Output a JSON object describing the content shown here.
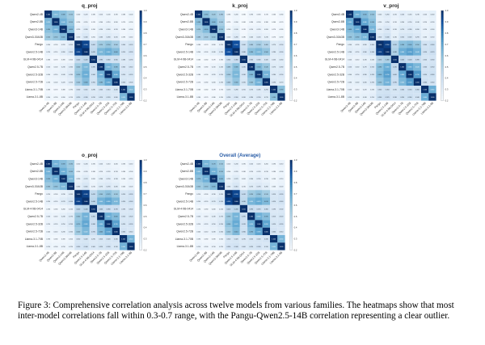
{
  "figure": {
    "caption": "Figure 3: Comprehensive correlation analysis across twelve models from various families. The heatmaps show that most inter-model correlations fall within 0.3-0.7 range, with the Pangu-Qwen2.5-14B correlation representing a clear outlier."
  },
  "chart_data": [
    {
      "type": "heatmap",
      "title": "q_proj",
      "models": [
        "Qwen2-4B",
        "Qwen2-8B",
        "Qwen3-14B",
        "Qwen3-30A3B",
        "Pangu",
        "Qwen2.5-14B",
        "GLM-4-9B-0414",
        "Qwen2.5-7B",
        "Qwen2.5-32B",
        "Qwen2.5-72B",
        "Llama-3.1-70B",
        "Llama-3.1-8B"
      ],
      "values": [
        [
          1.0,
          0.62,
          0.58,
          0.52,
          0.2,
          0.22,
          0.18,
          0.21,
          0.2,
          0.19,
          0.18,
          0.2
        ],
        [
          0.62,
          1.0,
          0.64,
          0.55,
          0.19,
          0.21,
          0.17,
          0.2,
          0.21,
          0.2,
          0.17,
          0.19
        ],
        [
          0.58,
          0.64,
          1.0,
          0.6,
          0.22,
          0.26,
          0.19,
          0.23,
          0.24,
          0.22,
          0.18,
          0.2
        ],
        [
          0.52,
          0.55,
          0.6,
          1.0,
          0.25,
          0.3,
          0.2,
          0.26,
          0.28,
          0.25,
          0.19,
          0.21
        ],
        [
          0.2,
          0.19,
          0.22,
          0.25,
          1.0,
          0.93,
          0.4,
          0.52,
          0.55,
          0.5,
          0.3,
          0.32
        ],
        [
          0.22,
          0.21,
          0.26,
          0.3,
          0.93,
          1.0,
          0.42,
          0.62,
          0.66,
          0.6,
          0.31,
          0.33
        ],
        [
          0.18,
          0.17,
          0.19,
          0.2,
          0.4,
          0.42,
          1.0,
          0.38,
          0.36,
          0.35,
          0.28,
          0.29
        ],
        [
          0.21,
          0.2,
          0.23,
          0.26,
          0.52,
          0.62,
          0.38,
          1.0,
          0.64,
          0.58,
          0.3,
          0.31
        ],
        [
          0.2,
          0.21,
          0.24,
          0.28,
          0.55,
          0.66,
          0.36,
          0.64,
          1.0,
          0.68,
          0.31,
          0.32
        ],
        [
          0.19,
          0.2,
          0.22,
          0.25,
          0.5,
          0.6,
          0.35,
          0.58,
          0.68,
          1.0,
          0.32,
          0.3
        ],
        [
          0.18,
          0.17,
          0.18,
          0.19,
          0.3,
          0.31,
          0.28,
          0.3,
          0.31,
          0.32,
          1.0,
          0.62
        ],
        [
          0.2,
          0.19,
          0.2,
          0.21,
          0.32,
          0.33,
          0.29,
          0.31,
          0.32,
          0.3,
          0.62,
          1.0
        ]
      ],
      "colorbar_ticks": [
        "1.0",
        "0.9",
        "0.8",
        "0.7",
        "0.6",
        "0.5",
        "0.4",
        "0.3",
        "0.2"
      ]
    },
    {
      "type": "heatmap",
      "title": "k_proj",
      "models": [
        "Qwen2-4B",
        "Qwen2-8B",
        "Qwen3-14B",
        "Qwen3-30A3B",
        "Pangu",
        "Qwen2.5-14B",
        "GLM-4-9B-0414",
        "Qwen2.5-7B",
        "Qwen2.5-32B",
        "Qwen2.5-72B",
        "Llama-3.1-70B",
        "Llama-3.1-8B"
      ],
      "values": [
        [
          1.0,
          0.58,
          0.52,
          0.48,
          0.18,
          0.2,
          0.16,
          0.19,
          0.18,
          0.17,
          0.16,
          0.18
        ],
        [
          0.58,
          1.0,
          0.6,
          0.5,
          0.17,
          0.2,
          0.16,
          0.18,
          0.19,
          0.18,
          0.16,
          0.17
        ],
        [
          0.52,
          0.6,
          1.0,
          0.55,
          0.2,
          0.24,
          0.17,
          0.21,
          0.22,
          0.2,
          0.17,
          0.18
        ],
        [
          0.48,
          0.5,
          0.55,
          1.0,
          0.22,
          0.28,
          0.18,
          0.24,
          0.25,
          0.23,
          0.17,
          0.19
        ],
        [
          0.18,
          0.17,
          0.2,
          0.22,
          1.0,
          0.9,
          0.36,
          0.48,
          0.5,
          0.46,
          0.27,
          0.29
        ],
        [
          0.2,
          0.2,
          0.24,
          0.28,
          0.9,
          1.0,
          0.38,
          0.58,
          0.62,
          0.56,
          0.28,
          0.3
        ],
        [
          0.16,
          0.16,
          0.17,
          0.18,
          0.36,
          0.38,
          1.0,
          0.34,
          0.33,
          0.32,
          0.25,
          0.26
        ],
        [
          0.19,
          0.18,
          0.21,
          0.24,
          0.48,
          0.58,
          0.34,
          1.0,
          0.6,
          0.54,
          0.27,
          0.28
        ],
        [
          0.18,
          0.19,
          0.22,
          0.25,
          0.5,
          0.62,
          0.33,
          0.6,
          1.0,
          0.64,
          0.28,
          0.29
        ],
        [
          0.17,
          0.18,
          0.2,
          0.23,
          0.46,
          0.56,
          0.32,
          0.54,
          0.64,
          1.0,
          0.29,
          0.27
        ],
        [
          0.16,
          0.16,
          0.17,
          0.17,
          0.27,
          0.28,
          0.25,
          0.27,
          0.28,
          0.29,
          1.0,
          0.58
        ],
        [
          0.18,
          0.17,
          0.18,
          0.19,
          0.29,
          0.3,
          0.26,
          0.28,
          0.29,
          0.27,
          0.58,
          1.0
        ]
      ],
      "colorbar_ticks": [
        "1.0",
        "0.9",
        "0.8",
        "0.7",
        "0.6",
        "0.5",
        "0.4",
        "0.3",
        "0.2"
      ]
    },
    {
      "type": "heatmap",
      "title": "v_proj",
      "models": [
        "Qwen2-4B",
        "Qwen2-8B",
        "Qwen3-14B",
        "Qwen3-30A3B",
        "Pangu",
        "Qwen2.5-14B",
        "GLM-4-9B-0414",
        "Qwen2.5-7B",
        "Qwen2.5-32B",
        "Qwen2.5-72B",
        "Llama-3.1-70B",
        "Llama-3.1-8B"
      ],
      "values": [
        [
          1.0,
          0.66,
          0.6,
          0.55,
          0.24,
          0.26,
          0.22,
          0.25,
          0.24,
          0.23,
          0.22,
          0.24
        ],
        [
          0.66,
          1.0,
          0.68,
          0.58,
          0.23,
          0.25,
          0.21,
          0.24,
          0.25,
          0.24,
          0.21,
          0.23
        ],
        [
          0.6,
          0.68,
          1.0,
          0.63,
          0.26,
          0.3,
          0.23,
          0.27,
          0.28,
          0.26,
          0.22,
          0.24
        ],
        [
          0.55,
          0.58,
          0.63,
          1.0,
          0.3,
          0.34,
          0.24,
          0.31,
          0.32,
          0.29,
          0.23,
          0.25
        ],
        [
          0.24,
          0.23,
          0.26,
          0.3,
          1.0,
          0.95,
          0.45,
          0.58,
          0.6,
          0.55,
          0.34,
          0.36
        ],
        [
          0.26,
          0.25,
          0.3,
          0.34,
          0.95,
          1.0,
          0.48,
          0.66,
          0.7,
          0.64,
          0.35,
          0.37
        ],
        [
          0.22,
          0.21,
          0.23,
          0.24,
          0.45,
          0.48,
          1.0,
          0.42,
          0.4,
          0.39,
          0.32,
          0.33
        ],
        [
          0.25,
          0.24,
          0.27,
          0.31,
          0.58,
          0.66,
          0.42,
          1.0,
          0.68,
          0.62,
          0.34,
          0.35
        ],
        [
          0.24,
          0.25,
          0.28,
          0.32,
          0.6,
          0.7,
          0.4,
          0.68,
          1.0,
          0.72,
          0.35,
          0.36
        ],
        [
          0.23,
          0.24,
          0.26,
          0.29,
          0.55,
          0.64,
          0.39,
          0.62,
          0.72,
          1.0,
          0.36,
          0.34
        ],
        [
          0.22,
          0.21,
          0.22,
          0.23,
          0.34,
          0.35,
          0.32,
          0.34,
          0.35,
          0.36,
          1.0,
          0.66
        ],
        [
          0.24,
          0.23,
          0.24,
          0.25,
          0.36,
          0.37,
          0.33,
          0.35,
          0.36,
          0.34,
          0.66,
          1.0
        ]
      ],
      "colorbar_ticks": [
        "1.0",
        "0.9",
        "0.8",
        "0.7",
        "0.6",
        "0.5",
        "0.4",
        "0.3",
        "0.2"
      ]
    },
    {
      "type": "heatmap",
      "title": "o_proj",
      "models": [
        "Qwen2-4B",
        "Qwen2-8B",
        "Qwen3-14B",
        "Qwen3-30A3B",
        "Pangu",
        "Qwen2.5-14B",
        "GLM-4-9B-0414",
        "Qwen2.5-7B",
        "Qwen2.5-32B",
        "Qwen2.5-72B",
        "Llama-3.1-70B",
        "Llama-3.1-8B"
      ],
      "values": [
        [
          1.0,
          0.64,
          0.59,
          0.53,
          0.21,
          0.23,
          0.19,
          0.22,
          0.21,
          0.2,
          0.19,
          0.21
        ],
        [
          0.64,
          1.0,
          0.66,
          0.56,
          0.2,
          0.22,
          0.18,
          0.21,
          0.22,
          0.21,
          0.18,
          0.2
        ],
        [
          0.59,
          0.66,
          1.0,
          0.62,
          0.23,
          0.27,
          0.2,
          0.24,
          0.25,
          0.23,
          0.19,
          0.21
        ],
        [
          0.53,
          0.56,
          0.62,
          1.0,
          0.26,
          0.31,
          0.21,
          0.27,
          0.29,
          0.26,
          0.2,
          0.22
        ],
        [
          0.21,
          0.2,
          0.23,
          0.26,
          1.0,
          0.94,
          0.42,
          0.54,
          0.57,
          0.52,
          0.31,
          0.33
        ],
        [
          0.23,
          0.22,
          0.27,
          0.31,
          0.94,
          1.0,
          0.44,
          0.64,
          0.68,
          0.62,
          0.32,
          0.34
        ],
        [
          0.19,
          0.18,
          0.2,
          0.21,
          0.42,
          0.44,
          1.0,
          0.4,
          0.38,
          0.37,
          0.29,
          0.3
        ],
        [
          0.22,
          0.21,
          0.24,
          0.27,
          0.54,
          0.64,
          0.4,
          1.0,
          0.66,
          0.6,
          0.31,
          0.32
        ],
        [
          0.21,
          0.22,
          0.25,
          0.29,
          0.57,
          0.68,
          0.38,
          0.66,
          1.0,
          0.7,
          0.32,
          0.33
        ],
        [
          0.2,
          0.21,
          0.23,
          0.26,
          0.52,
          0.62,
          0.37,
          0.6,
          0.7,
          1.0,
          0.33,
          0.31
        ],
        [
          0.19,
          0.18,
          0.19,
          0.2,
          0.31,
          0.32,
          0.29,
          0.31,
          0.32,
          0.33,
          1.0,
          0.64
        ],
        [
          0.21,
          0.2,
          0.21,
          0.22,
          0.33,
          0.34,
          0.3,
          0.32,
          0.33,
          0.31,
          0.64,
          1.0
        ]
      ],
      "colorbar_ticks": [
        "1.0",
        "0.9",
        "0.8",
        "0.7",
        "0.6",
        "0.5",
        "0.4",
        "0.3",
        "0.2"
      ]
    },
    {
      "type": "heatmap",
      "title": "Overall (Average)",
      "models": [
        "Qwen2-4B",
        "Qwen2-8B",
        "Qwen3-14B",
        "Qwen3-30A3B",
        "Pangu",
        "Qwen2.5-14B",
        "GLM-4-9B-0414",
        "Qwen2.5-7B",
        "Qwen2.5-32B",
        "Qwen2.5-72B",
        "Llama-3.1-70B",
        "Llama-3.1-8B"
      ],
      "values": [
        [
          1.0,
          0.63,
          0.57,
          0.52,
          0.21,
          0.23,
          0.19,
          0.22,
          0.21,
          0.2,
          0.19,
          0.21
        ],
        [
          0.63,
          1.0,
          0.65,
          0.55,
          0.2,
          0.22,
          0.18,
          0.21,
          0.22,
          0.21,
          0.18,
          0.2
        ],
        [
          0.57,
          0.65,
          1.0,
          0.6,
          0.23,
          0.27,
          0.2,
          0.24,
          0.25,
          0.23,
          0.19,
          0.21
        ],
        [
          0.52,
          0.55,
          0.6,
          1.0,
          0.26,
          0.31,
          0.21,
          0.27,
          0.29,
          0.26,
          0.2,
          0.22
        ],
        [
          0.21,
          0.2,
          0.23,
          0.26,
          1.0,
          0.93,
          0.41,
          0.53,
          0.56,
          0.51,
          0.31,
          0.33
        ],
        [
          0.23,
          0.22,
          0.27,
          0.31,
          0.93,
          1.0,
          0.43,
          0.63,
          0.67,
          0.61,
          0.32,
          0.34
        ],
        [
          0.19,
          0.18,
          0.2,
          0.21,
          0.41,
          0.43,
          1.0,
          0.39,
          0.37,
          0.36,
          0.29,
          0.3
        ],
        [
          0.22,
          0.21,
          0.24,
          0.27,
          0.53,
          0.63,
          0.39,
          1.0,
          0.65,
          0.59,
          0.31,
          0.32
        ],
        [
          0.21,
          0.22,
          0.25,
          0.29,
          0.56,
          0.67,
          0.37,
          0.65,
          1.0,
          0.69,
          0.32,
          0.33
        ],
        [
          0.2,
          0.21,
          0.23,
          0.26,
          0.51,
          0.61,
          0.36,
          0.59,
          0.69,
          1.0,
          0.33,
          0.31
        ],
        [
          0.19,
          0.18,
          0.19,
          0.2,
          0.31,
          0.32,
          0.29,
          0.31,
          0.32,
          0.33,
          1.0,
          0.63
        ],
        [
          0.21,
          0.2,
          0.21,
          0.22,
          0.33,
          0.34,
          0.3,
          0.32,
          0.33,
          0.31,
          0.63,
          1.0
        ]
      ],
      "colorbar_ticks": [
        "1.0",
        "0.9",
        "0.8",
        "0.7",
        "0.6",
        "0.5",
        "0.4",
        "0.3",
        "0.2"
      ]
    }
  ]
}
